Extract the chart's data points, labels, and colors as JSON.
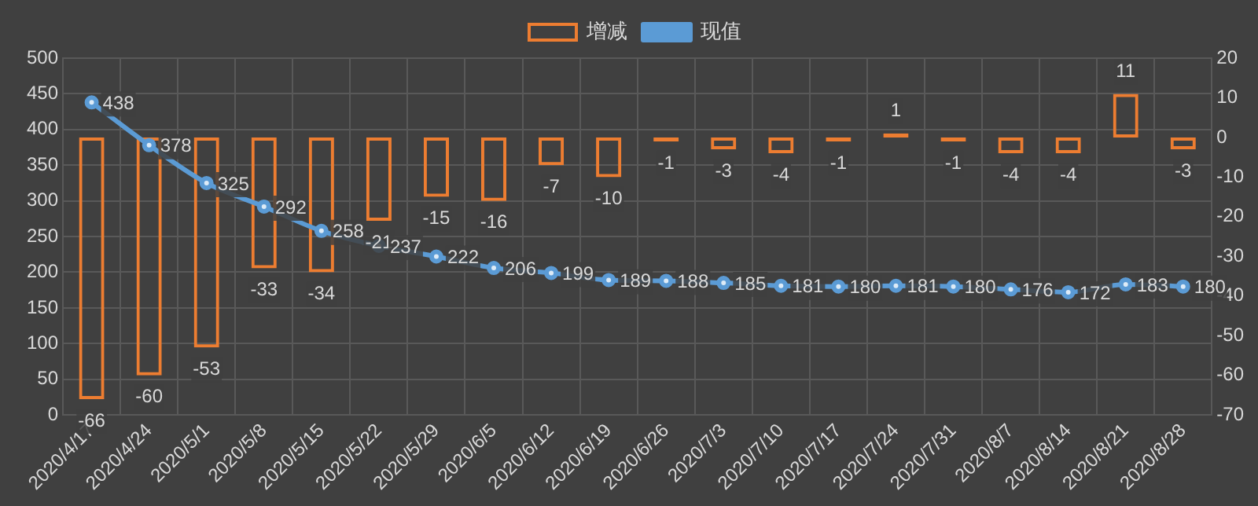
{
  "chart_data": {
    "type": "bar",
    "categories": [
      "2020/4/17",
      "2020/4/24",
      "2020/5/1",
      "2020/5/8",
      "2020/5/15",
      "2020/5/22",
      "2020/5/29",
      "2020/6/5",
      "2020/6/12",
      "2020/6/19",
      "2020/6/26",
      "2020/7/3",
      "2020/7/10",
      "2020/7/17",
      "2020/7/24",
      "2020/7/31",
      "2020/8/7",
      "2020/8/14",
      "2020/8/21",
      "2020/8/28"
    ],
    "series": [
      {
        "name": "增减",
        "axis": "y2",
        "color": "#ed7d31",
        "values": [
          -66,
          -60,
          -53,
          -33,
          -34,
          -21,
          -15,
          -16,
          -7,
          -10,
          -1,
          -3,
          -4,
          -1,
          1,
          -1,
          -4,
          -4,
          11,
          -3
        ]
      },
      {
        "name": "现值",
        "type": "line",
        "color": "#5b9bd5",
        "values": [
          438,
          378,
          325,
          292,
          258,
          237,
          222,
          206,
          199,
          189,
          188,
          185,
          181,
          180,
          181,
          180,
          176,
          172,
          183,
          180
        ]
      }
    ],
    "ylim": [
      0,
      500
    ],
    "yticks": [
      0,
      50,
      100,
      150,
      200,
      250,
      300,
      350,
      400,
      450,
      500
    ],
    "y2lim": [
      -70,
      20
    ],
    "y2ticks": [
      -70,
      -60,
      -50,
      -40,
      -30,
      -20,
      -10,
      0,
      10,
      20
    ],
    "grid": true,
    "legend": "top",
    "marker": "circle",
    "data_labels": true
  }
}
